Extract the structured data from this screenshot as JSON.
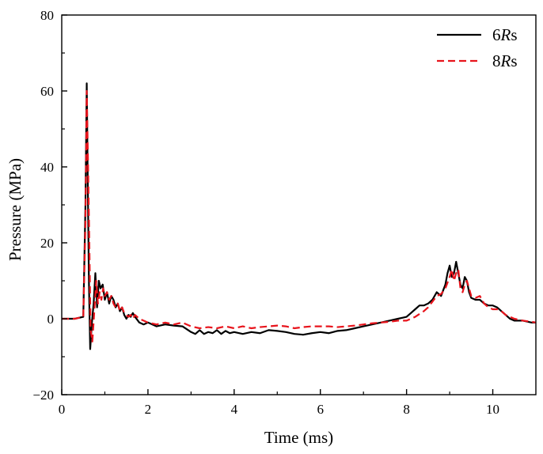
{
  "chart_data": {
    "type": "line",
    "title": "",
    "xlabel": "Time (ms)",
    "ylabel": "Pressure (MPa)",
    "xlim": [
      0,
      11
    ],
    "ylim": [
      -20,
      80
    ],
    "xticks": [
      0,
      2,
      4,
      6,
      8,
      10
    ],
    "yticks": [
      -20,
      0,
      20,
      40,
      60,
      80
    ],
    "ytick_labels": [
      "−20",
      "0",
      "20",
      "40",
      "60",
      "80"
    ],
    "grid": false,
    "legend_position": "top-right",
    "series": [
      {
        "name_prefix": "6",
        "name_italic": "R",
        "name_suffix": "s",
        "color": "#000000",
        "dash": "solid",
        "points": [
          [
            0,
            0
          ],
          [
            0.3,
            0
          ],
          [
            0.5,
            0.5
          ],
          [
            0.55,
            30
          ],
          [
            0.58,
            62
          ],
          [
            0.6,
            40
          ],
          [
            0.63,
            10
          ],
          [
            0.66,
            -8
          ],
          [
            0.7,
            -1
          ],
          [
            0.74,
            4
          ],
          [
            0.78,
            12
          ],
          [
            0.82,
            3
          ],
          [
            0.86,
            10
          ],
          [
            0.9,
            8
          ],
          [
            0.95,
            9
          ],
          [
            1.0,
            5
          ],
          [
            1.05,
            7
          ],
          [
            1.1,
            4
          ],
          [
            1.15,
            6
          ],
          [
            1.2,
            5
          ],
          [
            1.25,
            3
          ],
          [
            1.3,
            4
          ],
          [
            1.35,
            2
          ],
          [
            1.4,
            3
          ],
          [
            1.45,
            1
          ],
          [
            1.5,
            0
          ],
          [
            1.55,
            1
          ],
          [
            1.6,
            0.5
          ],
          [
            1.65,
            1.5
          ],
          [
            1.7,
            0.5
          ],
          [
            1.8,
            -1
          ],
          [
            1.9,
            -1.5
          ],
          [
            2.0,
            -1
          ],
          [
            2.2,
            -2
          ],
          [
            2.4,
            -1.5
          ],
          [
            2.6,
            -1.8
          ],
          [
            2.8,
            -2
          ],
          [
            3.0,
            -3.5
          ],
          [
            3.1,
            -4
          ],
          [
            3.2,
            -3
          ],
          [
            3.3,
            -4
          ],
          [
            3.4,
            -3.5
          ],
          [
            3.5,
            -3.8
          ],
          [
            3.6,
            -3
          ],
          [
            3.7,
            -4
          ],
          [
            3.8,
            -3.2
          ],
          [
            3.9,
            -3.8
          ],
          [
            4.0,
            -3.5
          ],
          [
            4.2,
            -4
          ],
          [
            4.4,
            -3.5
          ],
          [
            4.6,
            -3.8
          ],
          [
            4.8,
            -3
          ],
          [
            5.0,
            -3.2
          ],
          [
            5.2,
            -3.5
          ],
          [
            5.4,
            -4
          ],
          [
            5.6,
            -4.2
          ],
          [
            5.8,
            -3.8
          ],
          [
            6.0,
            -3.5
          ],
          [
            6.2,
            -3.8
          ],
          [
            6.4,
            -3.2
          ],
          [
            6.6,
            -3
          ],
          [
            6.8,
            -2.5
          ],
          [
            7.0,
            -2
          ],
          [
            7.2,
            -1.5
          ],
          [
            7.4,
            -1
          ],
          [
            7.6,
            -0.5
          ],
          [
            7.8,
            0
          ],
          [
            8.0,
            0.5
          ],
          [
            8.1,
            1.5
          ],
          [
            8.2,
            2.5
          ],
          [
            8.3,
            3.5
          ],
          [
            8.4,
            3.5
          ],
          [
            8.5,
            4
          ],
          [
            8.6,
            5
          ],
          [
            8.7,
            7
          ],
          [
            8.8,
            6
          ],
          [
            8.9,
            9
          ],
          [
            8.95,
            12
          ],
          [
            9.0,
            14
          ],
          [
            9.05,
            11
          ],
          [
            9.1,
            12
          ],
          [
            9.15,
            15
          ],
          [
            9.2,
            12
          ],
          [
            9.25,
            9
          ],
          [
            9.3,
            8
          ],
          [
            9.35,
            11
          ],
          [
            9.4,
            10
          ],
          [
            9.45,
            7
          ],
          [
            9.5,
            5.5
          ],
          [
            9.6,
            5
          ],
          [
            9.7,
            5
          ],
          [
            9.8,
            4
          ],
          [
            9.9,
            3.5
          ],
          [
            10.0,
            3.5
          ],
          [
            10.1,
            3
          ],
          [
            10.2,
            2
          ],
          [
            10.3,
            1
          ],
          [
            10.4,
            0
          ],
          [
            10.5,
            -0.5
          ],
          [
            10.7,
            -0.5
          ],
          [
            10.9,
            -1
          ],
          [
            11.0,
            -1
          ]
        ]
      },
      {
        "name_prefix": "8",
        "name_italic": "R",
        "name_suffix": "s",
        "color": "#e8141c",
        "dash": "dashed",
        "points": [
          [
            0,
            0
          ],
          [
            0.3,
            0
          ],
          [
            0.5,
            0.5
          ],
          [
            0.55,
            25
          ],
          [
            0.58,
            60
          ],
          [
            0.61,
            41
          ],
          [
            0.64,
            20
          ],
          [
            0.67,
            -3
          ],
          [
            0.71,
            -6
          ],
          [
            0.75,
            1
          ],
          [
            0.8,
            10
          ],
          [
            0.84,
            4
          ],
          [
            0.88,
            7
          ],
          [
            0.92,
            5
          ],
          [
            0.96,
            8
          ],
          [
            1.0,
            6
          ],
          [
            1.05,
            7
          ],
          [
            1.1,
            5
          ],
          [
            1.15,
            6
          ],
          [
            1.2,
            4
          ],
          [
            1.25,
            3
          ],
          [
            1.3,
            4
          ],
          [
            1.35,
            2
          ],
          [
            1.4,
            3
          ],
          [
            1.45,
            1.5
          ],
          [
            1.5,
            1
          ],
          [
            1.55,
            0.5
          ],
          [
            1.6,
            1
          ],
          [
            1.65,
            0
          ],
          [
            1.7,
            1
          ],
          [
            1.8,
            0
          ],
          [
            1.9,
            -0.5
          ],
          [
            2.0,
            -1
          ],
          [
            2.2,
            -1.5
          ],
          [
            2.4,
            -1
          ],
          [
            2.6,
            -1.5
          ],
          [
            2.8,
            -1
          ],
          [
            3.0,
            -2
          ],
          [
            3.2,
            -2.5
          ],
          [
            3.4,
            -2.2
          ],
          [
            3.6,
            -2.5
          ],
          [
            3.8,
            -2
          ],
          [
            4.0,
            -2.5
          ],
          [
            4.2,
            -2
          ],
          [
            4.4,
            -2.5
          ],
          [
            4.6,
            -2.2
          ],
          [
            4.8,
            -2
          ],
          [
            5.0,
            -1.8
          ],
          [
            5.2,
            -2
          ],
          [
            5.4,
            -2.5
          ],
          [
            5.6,
            -2.2
          ],
          [
            5.8,
            -2
          ],
          [
            6.0,
            -2
          ],
          [
            6.2,
            -2
          ],
          [
            6.4,
            -2.2
          ],
          [
            6.6,
            -2
          ],
          [
            6.8,
            -1.8
          ],
          [
            7.0,
            -1.5
          ],
          [
            7.2,
            -1.2
          ],
          [
            7.4,
            -1
          ],
          [
            7.6,
            -0.8
          ],
          [
            7.8,
            -0.5
          ],
          [
            8.0,
            -0.5
          ],
          [
            8.2,
            0.5
          ],
          [
            8.4,
            2
          ],
          [
            8.5,
            3
          ],
          [
            8.6,
            4.5
          ],
          [
            8.7,
            6
          ],
          [
            8.8,
            6.5
          ],
          [
            8.9,
            8
          ],
          [
            9.0,
            11
          ],
          [
            9.05,
            13
          ],
          [
            9.1,
            10
          ],
          [
            9.15,
            12
          ],
          [
            9.2,
            13
          ],
          [
            9.25,
            8
          ],
          [
            9.3,
            7
          ],
          [
            9.35,
            9
          ],
          [
            9.4,
            10
          ],
          [
            9.45,
            8
          ],
          [
            9.5,
            6
          ],
          [
            9.6,
            5.5
          ],
          [
            9.7,
            6
          ],
          [
            9.8,
            4
          ],
          [
            9.9,
            3
          ],
          [
            10.0,
            2.5
          ],
          [
            10.1,
            2.5
          ],
          [
            10.2,
            2
          ],
          [
            10.3,
            1
          ],
          [
            10.4,
            0.5
          ],
          [
            10.5,
            0
          ],
          [
            10.7,
            -0.5
          ],
          [
            10.9,
            -0.8
          ],
          [
            11.0,
            -1
          ]
        ]
      }
    ]
  }
}
